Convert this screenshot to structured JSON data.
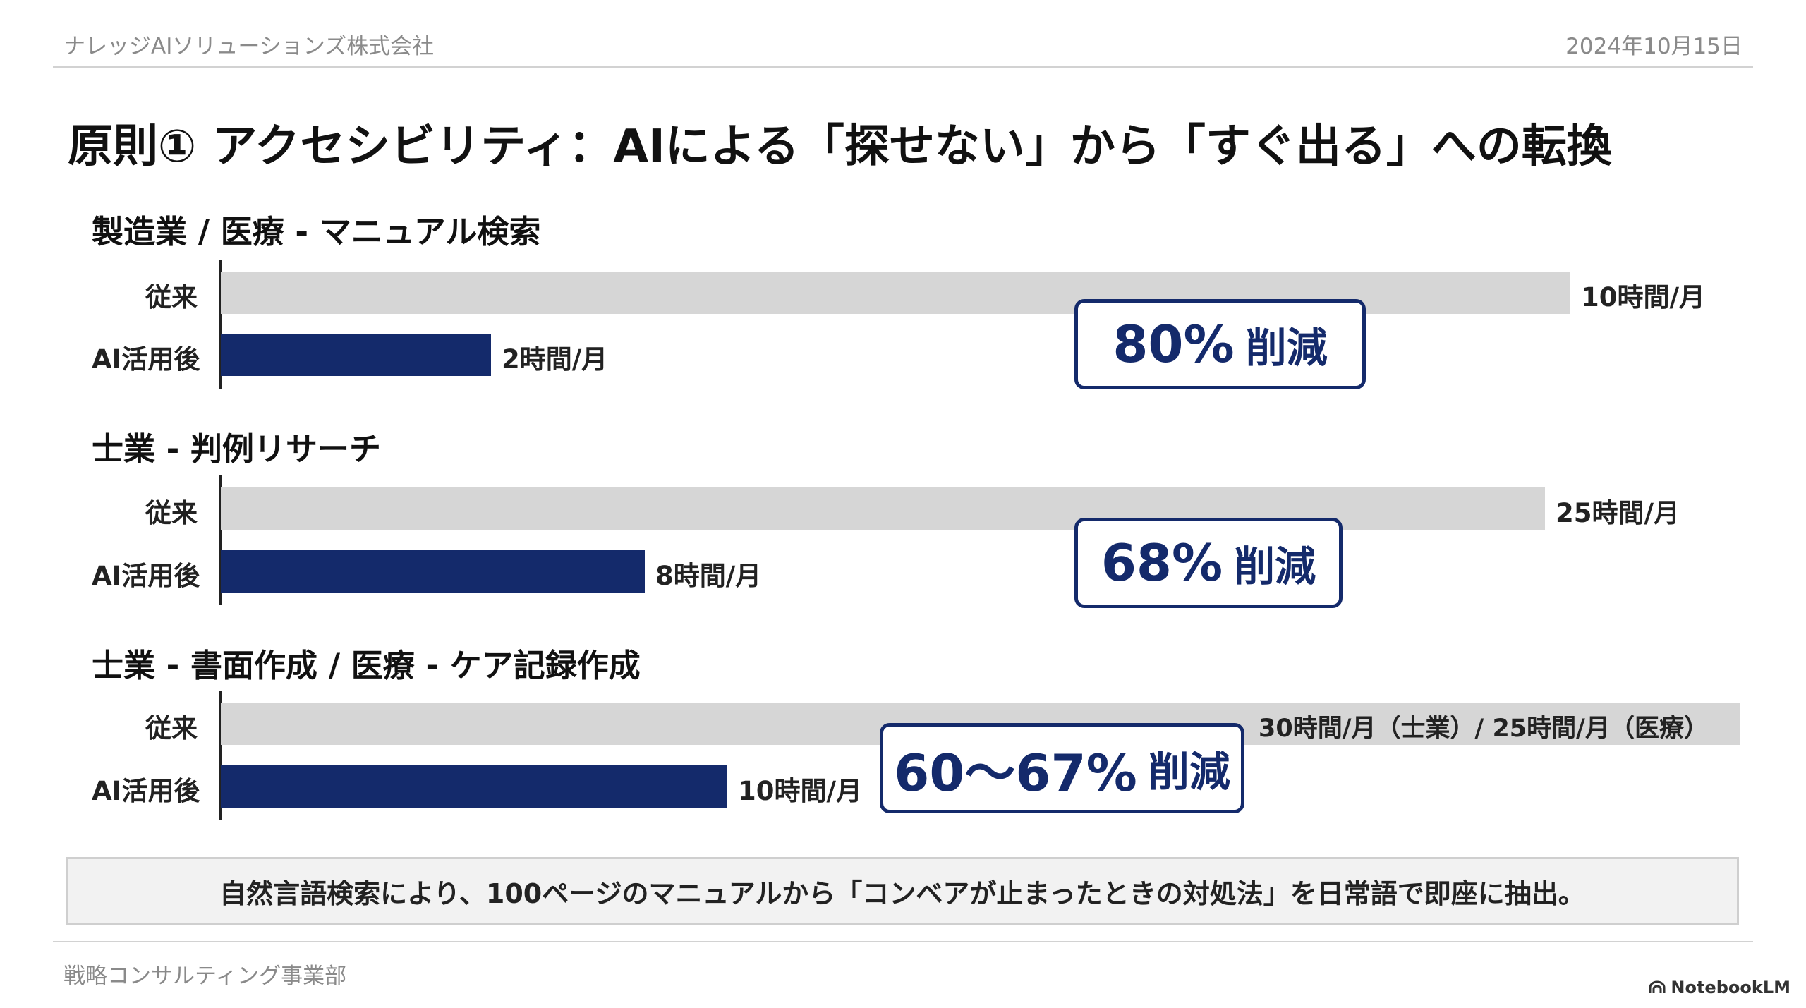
{
  "header": {
    "company": "ナレッジAIソリューションズ株式会社",
    "date": "2024年10月15日"
  },
  "title": "原則① アクセシビリティ：AIによる「探せない」から「すぐ出る」への転換",
  "chart_data": [
    {
      "type": "bar",
      "title": "製造業 / 医療 - マニュアル検索",
      "categories": [
        "従来",
        "AI活用後"
      ],
      "values": [
        10,
        2
      ],
      "value_labels": [
        "10時間/月",
        "2時間/月"
      ],
      "unit": "時間/月",
      "annotation": {
        "pct": "80%",
        "word": "削減"
      }
    },
    {
      "type": "bar",
      "title": "士業 - 判例リサーチ",
      "categories": [
        "従来",
        "AI活用後"
      ],
      "values": [
        25,
        8
      ],
      "value_labels": [
        "25時間/月",
        "8時間/月"
      ],
      "unit": "時間/月",
      "annotation": {
        "pct": "68%",
        "word": "削減"
      }
    },
    {
      "type": "bar",
      "title": "士業 - 書面作成 / 医療 - ケア記録作成",
      "categories": [
        "従来",
        "AI活用後"
      ],
      "values": [
        30,
        10
      ],
      "value_labels": [
        "30時間/月（士業）/ 25時間/月（医療）",
        "10時間/月"
      ],
      "unit": "時間/月",
      "annotation": {
        "pct": "60〜67%",
        "word": "削減"
      }
    }
  ],
  "note": "自然言語検索により、100ページのマニュアルから「コンベアが止まったときの対処法」を日常語で即座に抽出。",
  "footer": {
    "department": "戦略コンサルティング事業部",
    "brand": "NotebookLM"
  },
  "colors": {
    "before_bar": "#d6d6d6",
    "after_bar": "#142a6b",
    "accent": "#142a6b"
  }
}
